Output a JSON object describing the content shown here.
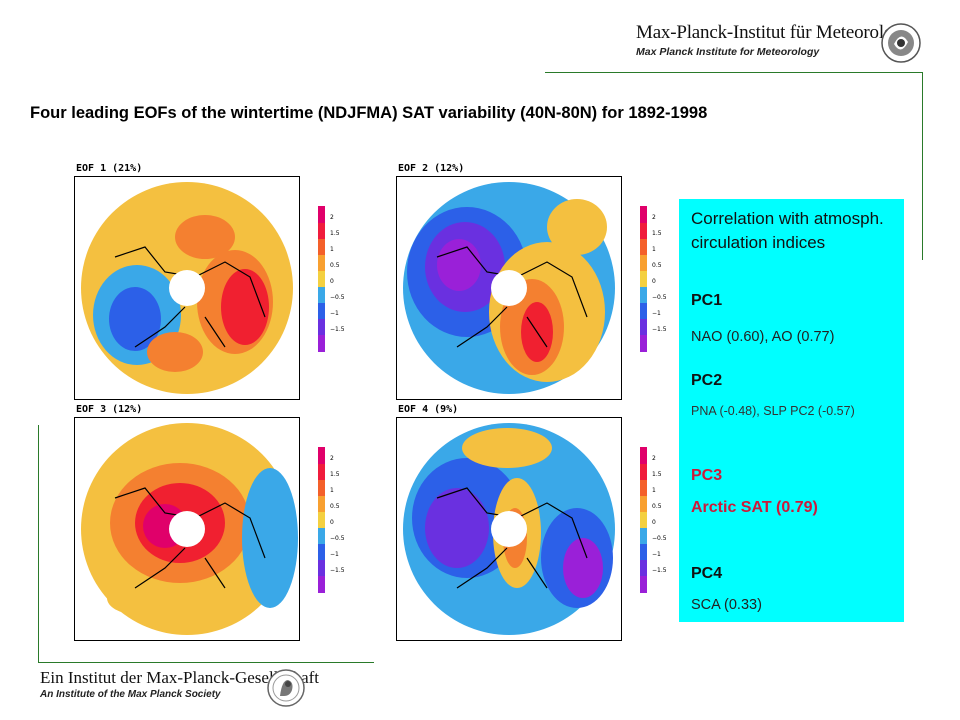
{
  "header": {
    "institute_title": "Max-Planck-Institut für Meteorologie",
    "institute_subtitle": "Max Planck Institute for Meteorology"
  },
  "title": "Four leading EOFs of the wintertime (NDJFMA) SAT variability (40N-80N) for 1892-1998",
  "panels": [
    {
      "label": "EOF 1 (21%)"
    },
    {
      "label": "EOF 2 (12%)"
    },
    {
      "label": "EOF 3 (12%)"
    },
    {
      "label": "EOF 4 (9%)"
    }
  ],
  "colorbar": {
    "ticks": [
      "2",
      "1.5",
      "1",
      "0.5",
      "0",
      "−0.5",
      "−1",
      "−1.5"
    ],
    "colors": [
      "#e0006a",
      "#f01c3c",
      "#f4602a",
      "#f8a030",
      "#f4d040",
      "#3aa8e8",
      "#2c60e8",
      "#6a30e0",
      "#9a20d8"
    ]
  },
  "info_box": {
    "intro": "Correlation with atmosph. circulation indices",
    "pc1": "PC1",
    "pc1_desc": "NAO (0.60), AO (0.77)",
    "pc2": "PC2",
    "pc2_desc": "PNA (-0.48), SLP PC2 (-0.57)",
    "pc3": "PC3",
    "pc3_desc": "Arctic  SAT (0.79)",
    "pc4": "PC4",
    "pc4_desc": "SCA (0.33)",
    "bg_color": "#00ffff",
    "highlight_color": "#cc1a3a"
  },
  "footer": {
    "title": "Ein Institut der Max-Planck-Gesellschaft",
    "subtitle": "An Institute of the Max Planck Society"
  }
}
